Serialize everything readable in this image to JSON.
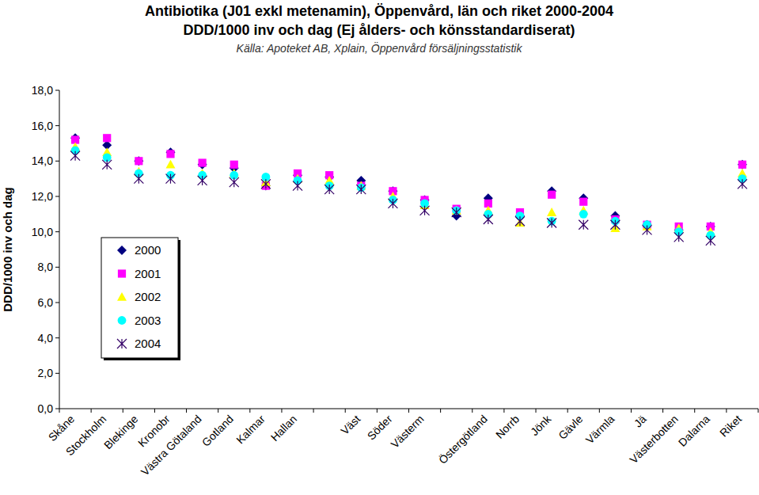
{
  "chart_data": {
    "type": "scatter",
    "title": "Antibiotika (J01 exkl metenamin), Öppenvård, län och riket 2000-2004",
    "subtitle": "DDD/1000 inv och dag (Ej ålders- och könsstandardiserat)",
    "annotations": [
      "Källa: Apoteket AB, Xplain, Öppenvård försäljningsstatistik"
    ],
    "y_label": "DDD/1000 inv och dag",
    "categories": [
      "Skåne",
      "Stockholm",
      "Blekinge",
      "Kronobr",
      "Västra Götaland",
      "Gotland",
      "Kalmar",
      "Hallan",
      null,
      "Väst",
      "Söder",
      "Västerm",
      null,
      "Östergötland",
      "Norrb",
      "Jönk",
      "Gävle",
      "Värmla",
      "Jä",
      "Västerbotten",
      "Dalarna",
      "Riket"
    ],
    "series": [
      {
        "name": "2000",
        "color": "#000080",
        "marker": "diamond",
        "values": [
          15.3,
          14.9,
          14.0,
          14.5,
          13.8,
          13.6,
          12.6,
          13.2,
          13.1,
          12.9,
          12.3,
          11.8,
          10.9,
          11.9,
          10.9,
          12.3,
          11.9,
          10.9,
          10.4,
          10.1,
          10.3,
          13.8
        ]
      },
      {
        "name": "2001",
        "color": "#ff00ff",
        "marker": "square",
        "values": [
          15.2,
          15.3,
          14.0,
          14.4,
          13.9,
          13.8,
          12.6,
          13.3,
          13.2,
          12.6,
          12.3,
          11.8,
          11.3,
          11.6,
          11.1,
          12.1,
          11.7,
          10.7,
          10.4,
          10.3,
          10.3,
          13.8
        ]
      },
      {
        "name": "2002",
        "color": "#ffff00",
        "marker": "triangle",
        "values": [
          14.8,
          14.5,
          13.4,
          13.8,
          13.3,
          13.3,
          12.8,
          13.0,
          12.9,
          12.6,
          12.0,
          11.5,
          11.2,
          11.2,
          10.5,
          11.1,
          11.2,
          10.2,
          10.3,
          10.2,
          10.0,
          13.3
        ]
      },
      {
        "name": "2003",
        "color": "#00ffff",
        "marker": "circle",
        "values": [
          14.6,
          14.2,
          13.3,
          13.2,
          13.2,
          13.2,
          13.1,
          12.9,
          12.6,
          12.5,
          11.8,
          11.6,
          11.2,
          11.0,
          10.9,
          10.6,
          11.0,
          10.6,
          10.4,
          10.0,
          9.8,
          13.0
        ]
      },
      {
        "name": "2004",
        "color": "#330066",
        "marker": "asterisk",
        "values": [
          14.3,
          13.8,
          13.0,
          13.0,
          12.9,
          12.8,
          12.7,
          12.6,
          12.4,
          12.4,
          11.6,
          11.2,
          11.1,
          10.7,
          10.6,
          10.5,
          10.4,
          10.4,
          10.1,
          9.7,
          9.5,
          12.7
        ]
      }
    ],
    "ylim": [
      0,
      18
    ],
    "yticks": [
      {
        "value": 0,
        "label": "0,0"
      },
      {
        "value": 2,
        "label": "2,0"
      },
      {
        "value": 4,
        "label": "4,0"
      },
      {
        "value": 6,
        "label": "6,0"
      },
      {
        "value": 8,
        "label": "8,0"
      },
      {
        "value": 10,
        "label": "10,0"
      },
      {
        "value": 12,
        "label": "12,0"
      },
      {
        "value": 14,
        "label": "14,0"
      },
      {
        "value": 16,
        "label": "16,0"
      },
      {
        "value": 18,
        "label": "18,0"
      }
    ],
    "grid": false,
    "legend": "left"
  }
}
